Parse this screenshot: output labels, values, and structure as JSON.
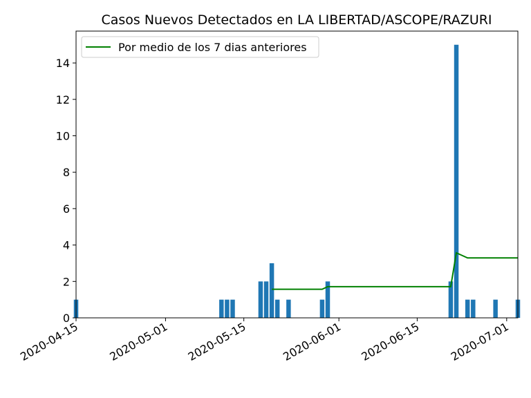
{
  "chart_data": {
    "type": "bar",
    "title": "Casos Nuevos Detectados en LA LIBERTAD/ASCOPE/RAZURI",
    "xlabel": "",
    "ylabel": "",
    "x_range": [
      "2020-04-15",
      "2020-07-03"
    ],
    "ylim": [
      0,
      15.75
    ],
    "x_tick_labels": [
      "2020-04-15",
      "2020-05-01",
      "2020-05-15",
      "2020-06-01",
      "2020-06-15",
      "2020-07-01"
    ],
    "y_tick_labels": [
      "0",
      "2",
      "4",
      "6",
      "8",
      "10",
      "12",
      "14"
    ],
    "y_ticks": [
      0,
      2,
      4,
      6,
      8,
      10,
      12,
      14
    ],
    "grid": false,
    "legend_position": "top-left",
    "bar_color": "#1f77b4",
    "line_color": "#008000",
    "series": [
      {
        "type": "bar",
        "x": [
          "2020-04-15",
          "2020-05-11",
          "2020-05-12",
          "2020-05-13",
          "2020-05-18",
          "2020-05-19",
          "2020-05-20",
          "2020-05-21",
          "2020-05-23",
          "2020-05-29",
          "2020-05-30",
          "2020-06-21",
          "2020-06-22",
          "2020-06-24",
          "2020-06-25",
          "2020-06-29",
          "2020-07-03"
        ],
        "values": [
          1,
          1,
          1,
          1,
          2,
          2,
          3,
          1,
          1,
          1,
          2,
          2,
          15,
          1,
          1,
          1,
          1
        ]
      },
      {
        "type": "line",
        "name": "Por medio de los 7 dias anteriores",
        "x": [
          "2020-05-20",
          "2020-05-29",
          "2020-05-30",
          "2020-06-21",
          "2020-06-22",
          "2020-06-24",
          "2020-07-03"
        ],
        "values": [
          1.57,
          1.57,
          1.71,
          1.71,
          3.57,
          3.29,
          3.29
        ]
      }
    ]
  }
}
